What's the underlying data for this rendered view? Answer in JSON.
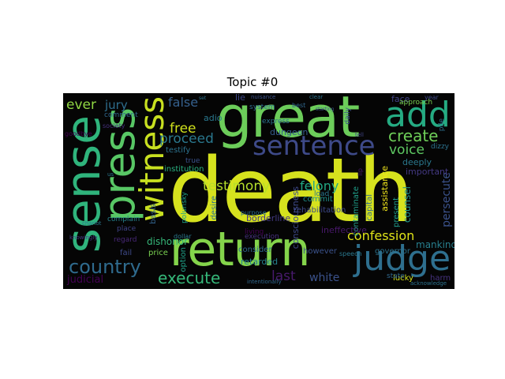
{
  "figure": {
    "title": "Topic #0",
    "palette": "viridis",
    "background_color": "#050505"
  },
  "words": [
    {
      "text": "death",
      "color": "#d6e21e"
    },
    {
      "text": "great",
      "color": "#6ccd5a"
    },
    {
      "text": "return",
      "color": "#84d44b"
    },
    {
      "text": "sense",
      "color": "#2fb47c"
    },
    {
      "text": "press",
      "color": "#58c765"
    },
    {
      "text": "judge",
      "color": "#2e6f8e"
    },
    {
      "text": "add",
      "color": "#25ab82"
    },
    {
      "text": "sentence",
      "color": "#3e4a89"
    },
    {
      "text": "witness",
      "color": "#c8e020"
    },
    {
      "text": "country",
      "color": "#2f6b8e"
    },
    {
      "text": "execute",
      "color": "#35b779"
    },
    {
      "text": "create",
      "color": "#6ece58"
    },
    {
      "text": "confession",
      "color": "#dfe318"
    },
    {
      "text": "testimony",
      "color": "#b5de2b"
    },
    {
      "text": "proceed",
      "color": "#2a788e"
    },
    {
      "text": "free",
      "color": "#d0e11c"
    },
    {
      "text": "false",
      "color": "#35608d"
    },
    {
      "text": "ever",
      "color": "#90d743"
    },
    {
      "text": "jury",
      "color": "#2e6e8e"
    },
    {
      "text": "voice",
      "color": "#5ec962"
    },
    {
      "text": "last",
      "color": "#481a6c"
    },
    {
      "text": "white",
      "color": "#3b528b"
    },
    {
      "text": "felony",
      "color": "#22a884"
    },
    {
      "text": "persecute",
      "color": "#3b528b"
    },
    {
      "text": "mankind",
      "color": "#277f8e"
    },
    {
      "text": "harm",
      "color": "#46327e"
    },
    {
      "text": "lucky",
      "color": "#d2e21b"
    },
    {
      "text": "counsel",
      "color": "#21918c"
    },
    {
      "text": "assistance",
      "color": "#f0e51c"
    },
    {
      "text": "consciousness",
      "color": "#3e4989"
    },
    {
      "text": "contaminate",
      "color": "#1f9e89"
    },
    {
      "text": "capital",
      "color": "#31688e"
    },
    {
      "text": "present",
      "color": "#2a788e"
    },
    {
      "text": "deeply",
      "color": "#443983"
    },
    {
      "text": "important",
      "color": "#1f9a8a"
    },
    {
      "text": "desire",
      "color": "#2c728e"
    },
    {
      "text": "option",
      "color": "#48186a"
    },
    {
      "text": "lost",
      "color": "#443983"
    },
    {
      "text": "bad",
      "color": "#3e4a89"
    },
    {
      "text": "eyed",
      "color": "#31688e"
    },
    {
      "text": "hunt",
      "color": "#46307e"
    },
    {
      "text": "basis",
      "color": "#26828e"
    },
    {
      "text": "polunsky",
      "color": "#2d708e"
    },
    {
      "text": "daily",
      "color": "#1fa188"
    },
    {
      "text": "pile",
      "color": "#35b779"
    },
    {
      "text": "lip",
      "color": "#7ad151"
    },
    {
      "text": "governor",
      "color": "#3e4a89"
    },
    {
      "text": "ineffective",
      "color": "#440154"
    },
    {
      "text": "borderline",
      "color": "#2a788e"
    },
    {
      "text": "rehabilitation",
      "color": "#2c728e"
    },
    {
      "text": "consider",
      "color": "#29af7f"
    },
    {
      "text": "execution",
      "color": "#32648e"
    },
    {
      "text": "retarded",
      "color": "#3b528b"
    },
    {
      "text": "dishonor",
      "color": "#440154"
    },
    {
      "text": "price",
      "color": "#365c8d"
    },
    {
      "text": "fail",
      "color": "#2c728e"
    },
    {
      "text": "judicial",
      "color": "#21918c"
    },
    {
      "text": "adio",
      "color": "#2d708e"
    },
    {
      "text": "testify",
      "color": "#1fa188"
    },
    {
      "text": "institution",
      "color": "#2a788e"
    },
    {
      "text": "true",
      "color": "#414487"
    },
    {
      "text": "living",
      "color": "#7ad151"
    },
    {
      "text": "dungeon",
      "color": "#3e4a89"
    },
    {
      "text": "express",
      "color": "#2c728e"
    },
    {
      "text": "commit",
      "color": "#2a788e"
    },
    {
      "text": "purpose",
      "color": "#481b6d"
    },
    {
      "text": "dollar",
      "color": "#3b528b"
    },
    {
      "text": "face",
      "color": "#3e4989"
    },
    {
      "text": "approach",
      "color": "#2e6e8e"
    },
    {
      "text": "year",
      "color": "#3b528b"
    },
    {
      "text": "load",
      "color": "#31688e"
    },
    {
      "text": "lie",
      "color": "#414487"
    },
    {
      "text": "system",
      "color": "#482878"
    },
    {
      "text": "however",
      "color": "#26828e"
    },
    {
      "text": "state",
      "color": "#2c728e"
    },
    {
      "text": "place",
      "color": "#2a788e"
    },
    {
      "text": "regard",
      "color": "#31688e"
    },
    {
      "text": "complain",
      "color": "#440154"
    },
    {
      "text": "dizzy",
      "color": "#46307e"
    },
    {
      "text": "speech",
      "color": "#2a788e"
    },
    {
      "text": "comment",
      "color": "#443983"
    },
    {
      "text": "goodbye",
      "color": "#31688e"
    },
    {
      "text": "society",
      "color": "#2c728e"
    },
    {
      "text": "chariot",
      "color": "#31688e"
    },
    {
      "text": "knowingly",
      "color": "#3b528b"
    },
    {
      "text": "intentionally",
      "color": "#2c728e"
    },
    {
      "text": "acknowledge",
      "color": "#3b528b"
    },
    {
      "text": "best",
      "color": "#414487"
    },
    {
      "text": "nuisance",
      "color": "#2c728e"
    },
    {
      "text": "clear",
      "color": "#2a788e"
    },
    {
      "text": "starting",
      "color": "#414487"
    },
    {
      "text": "tell",
      "color": "#3e4a89"
    },
    {
      "text": "set",
      "color": "#2c728e"
    },
    {
      "text": "us",
      "color": "#3b528b"
    }
  ]
}
